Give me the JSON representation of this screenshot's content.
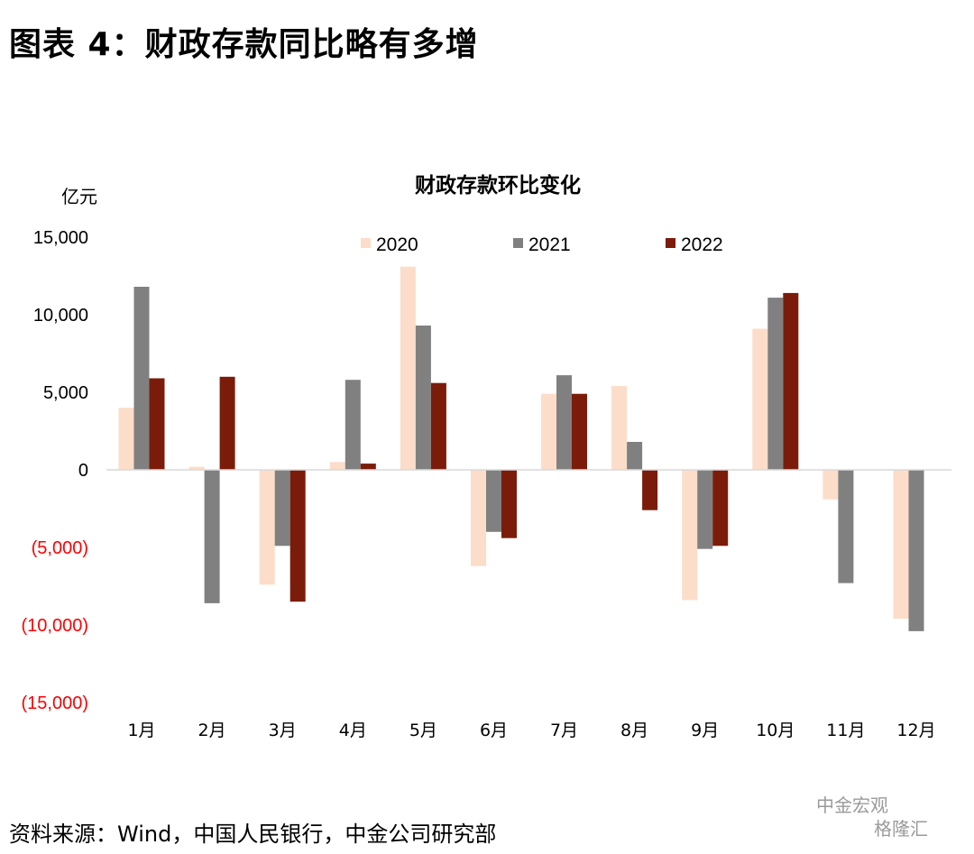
{
  "figure_title": "图表 4：财政存款同比略有多增",
  "source_note": "资料来源：Wind，中国人民银行，中金公司研究部",
  "watermark": {
    "brand": "中金宏观",
    "brand2": "格隆汇"
  },
  "chart_data": {
    "type": "bar",
    "title": "财政存款环比变化",
    "ylabel": "亿元",
    "ylim": [
      -15000,
      15000
    ],
    "yticks": [
      15000,
      10000,
      5000,
      0,
      -5000,
      -10000,
      -15000
    ],
    "ytick_labels": [
      "15,000",
      "10,000",
      "5,000",
      "0",
      "(5,000)",
      "(10,000)",
      "(15,000)"
    ],
    "negative_tick_color": "#ff0000",
    "categories": [
      "1月",
      "2月",
      "3月",
      "4月",
      "5月",
      "6月",
      "7月",
      "8月",
      "9月",
      "10月",
      "11月",
      "12月"
    ],
    "legend_position": "top-center",
    "series": [
      {
        "name": "2020",
        "color": "#fbddc9",
        "values": [
          4000,
          200,
          -7400,
          500,
          13100,
          -6200,
          4900,
          5400,
          -8400,
          9100,
          -1900,
          -9600
        ]
      },
      {
        "name": "2021",
        "color": "#808080",
        "values": [
          11800,
          -8600,
          -4900,
          5800,
          9300,
          -4000,
          6100,
          1800,
          -5100,
          11100,
          -7300,
          -10400
        ]
      },
      {
        "name": "2022",
        "color": "#7b1c0a",
        "values": [
          5900,
          6000,
          -8500,
          400,
          5600,
          -4400,
          4900,
          -2600,
          -4900,
          11400,
          null,
          null
        ]
      }
    ]
  }
}
